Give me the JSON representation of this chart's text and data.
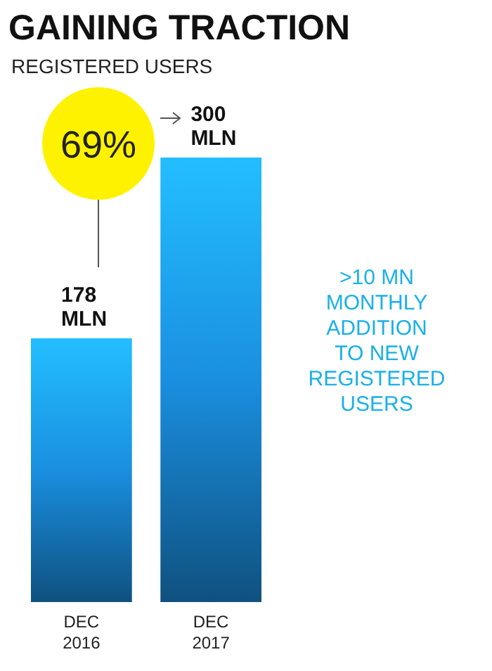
{
  "chart_data": {
    "type": "bar",
    "title": "GAINING TRACTION",
    "subtitle": "REGISTERED USERS",
    "categories": [
      "DEC 2016",
      "DEC 2017"
    ],
    "values": [
      178,
      300
    ],
    "value_labels": [
      "178 MLN",
      "300 MLN"
    ],
    "color": "#1a8fe0",
    "annotations": [
      "69%",
      ">10 MN MONTHLY ADDITION TO NEW REGISTERED USERS"
    ]
  }
}
